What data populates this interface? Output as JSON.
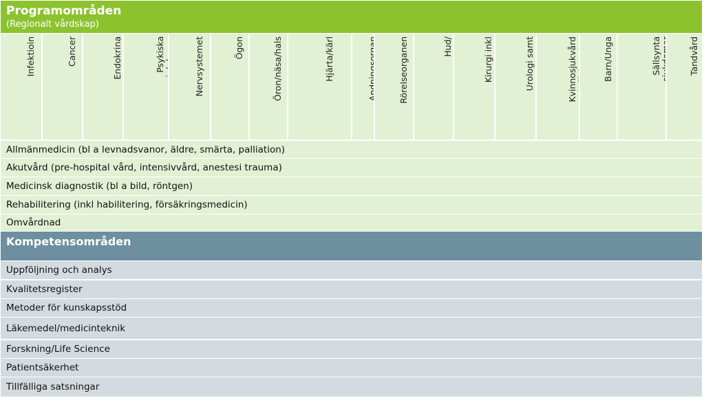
{
  "program_header": {
    "title": "Programområden",
    "subtitle": "(Regionalt vårdskap)"
  },
  "program_columns": [
    "Infektioin",
    "Cancer",
    "Endokrina\nsjukdomar",
    "Psykiska\nsjukdomar",
    "Nervsystemet",
    "Ögon",
    "Öron/näsa/hals",
    "Hjärta/kärl",
    "Andningsorgan",
    "Rörelseorganen",
    "Hud/\nVenereologi",
    "Kirurgi inkl\nmatsmätning",
    "Urologi samt\nnjure",
    "Kvinnosjukvård\noch förlossning",
    "Barn/Unga",
    "Sällsynta\nsjukdomar",
    "Tandvård"
  ],
  "program_rows": [
    "Allmänmedicin (bl a levnadsvanor, äldre, smärta, palliation)",
    "Akutvård (pre-hospital vård, intensivvård, anestesi trauma)",
    "Medicinsk diagnostik (bl a bild, röntgen)",
    "Rehabilitering (inkl habilitering, försäkringsmedicin)",
    "Omvårdnad"
  ],
  "competence_header": {
    "title": "Kompetensområden"
  },
  "competence_rows": [
    "Uppföljning och analys",
    "Kvalitetsregister",
    "Metoder för kunskapsstöd",
    "Läkemedel/medicinteknik",
    "Forskning/Life Science",
    "Patientsäkerhet",
    "Tillfälliga satsningar"
  ],
  "colors": {
    "green_header": "#8dc22f",
    "green_light": "#e2f0d4",
    "blue_header": "#6d8fa0",
    "gray_light": "#d3dbe1"
  }
}
